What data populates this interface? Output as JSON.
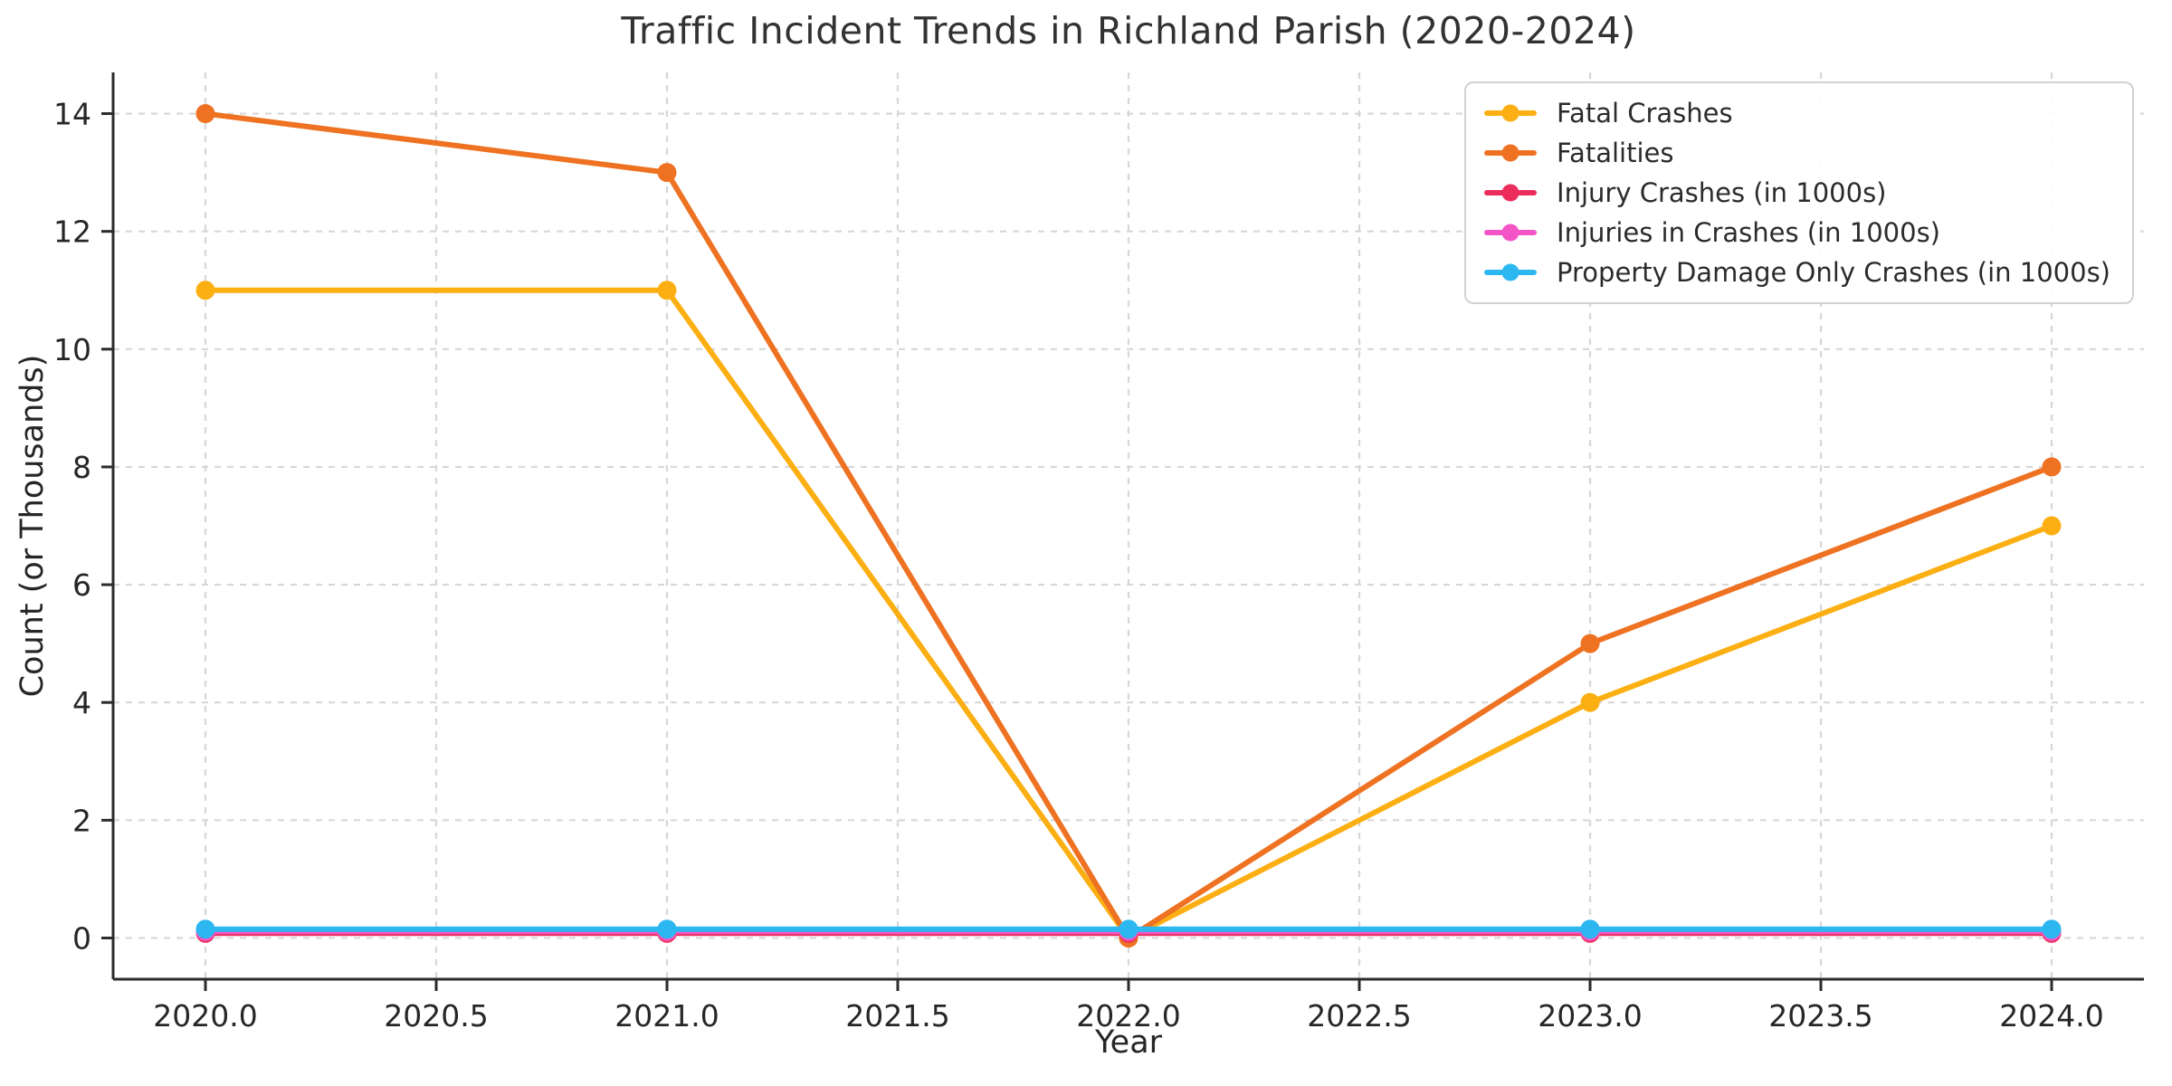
{
  "chart_data": {
    "type": "line",
    "title": "Traffic Incident Trends in Richland Parish (2020-2024)",
    "xlabel": "Year",
    "ylabel": "Count (or Thousands)",
    "x": [
      2020,
      2021,
      2022,
      2023,
      2024
    ],
    "series": [
      {
        "name": "Fatal Crashes",
        "color": "#FCAF13",
        "values": [
          11,
          11,
          0,
          4,
          7
        ]
      },
      {
        "name": "Fatalities",
        "color": "#EE7221",
        "values": [
          14,
          13,
          0,
          5,
          8
        ]
      },
      {
        "name": "Injury Crashes (in 1000s)",
        "color": "#EC2D5C",
        "values": [
          0.08,
          0.08,
          0.08,
          0.08,
          0.08
        ]
      },
      {
        "name": "Injuries in Crashes (in 1000s)",
        "color": "#F355C6",
        "values": [
          0.11,
          0.11,
          0.11,
          0.11,
          0.11
        ]
      },
      {
        "name": "Property Damage Only Crashes (in 1000s)",
        "color": "#2CB7F0",
        "values": [
          0.15,
          0.15,
          0.15,
          0.15,
          0.15
        ]
      }
    ],
    "xlim": [
      2019.8,
      2024.2
    ],
    "ylim": [
      -0.7,
      14.7
    ],
    "xticks": {
      "values": [
        2020.0,
        2020.5,
        2021.0,
        2021.5,
        2022.0,
        2022.5,
        2023.0,
        2023.5,
        2024.0
      ],
      "labels": [
        "2020.0",
        "2020.5",
        "2021.0",
        "2021.5",
        "2022.0",
        "2022.5",
        "2023.0",
        "2023.5",
        "2024.0"
      ]
    },
    "yticks": {
      "values": [
        0,
        2,
        4,
        6,
        8,
        10,
        12,
        14
      ],
      "labels": [
        "0",
        "2",
        "4",
        "6",
        "8",
        "10",
        "12",
        "14"
      ]
    },
    "grid": "dashed",
    "legend_position": "upper right",
    "style": {
      "grid_color": "#d7d7d7",
      "spine_color": "#2b2b2b",
      "tick_label_color": "#262626"
    }
  }
}
